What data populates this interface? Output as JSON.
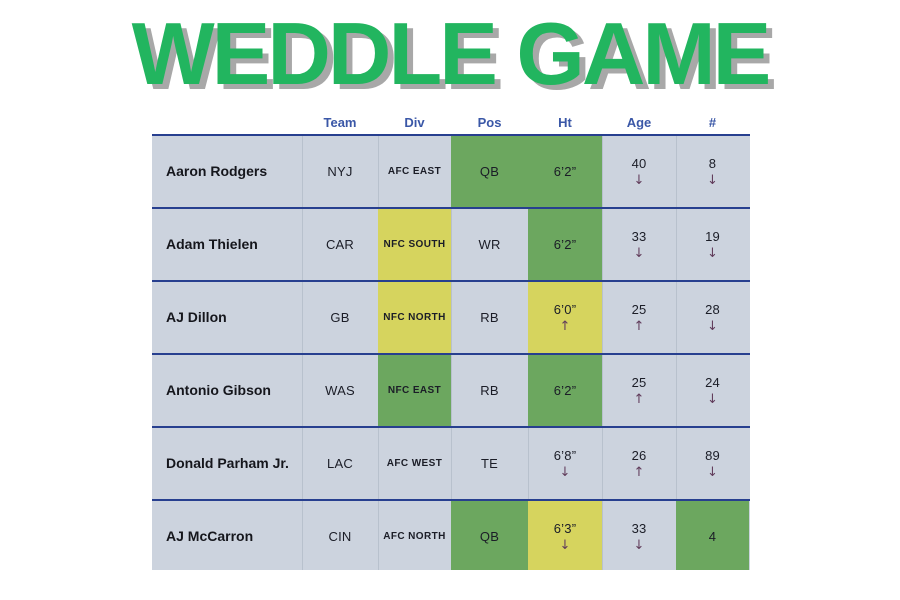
{
  "title": "WEDDLE GAME",
  "arrows": {
    "up": "↑",
    "down": "↓"
  },
  "colors": {
    "title_green": "#22b55f",
    "title_shadow": "#a8a8a8",
    "row_background": "#ccd3de",
    "correct_green": "#6ca75f",
    "close_yellow": "#d6d45e",
    "border_navy": "#273f8f",
    "header_text_blue": "#3a57a7",
    "arrow_purple": "#613c5b"
  },
  "table": {
    "headers": [
      "Team",
      "Div",
      "Pos",
      "Ht",
      "Age",
      "#"
    ],
    "rows": [
      {
        "name": "Aaron Rodgers",
        "cells": [
          {
            "text": "NYJ",
            "bg": "none",
            "arrow": ""
          },
          {
            "text": "AFC EAST",
            "bg": "none",
            "arrow": ""
          },
          {
            "text": "QB",
            "bg": "green",
            "arrow": ""
          },
          {
            "text": "6’2”",
            "bg": "green",
            "arrow": ""
          },
          {
            "text": "40",
            "bg": "none",
            "arrow": "down"
          },
          {
            "text": "8",
            "bg": "none",
            "arrow": "down"
          }
        ]
      },
      {
        "name": "Adam Thielen",
        "cells": [
          {
            "text": "CAR",
            "bg": "none",
            "arrow": ""
          },
          {
            "text": "NFC SOUTH",
            "bg": "yellow",
            "arrow": ""
          },
          {
            "text": "WR",
            "bg": "none",
            "arrow": ""
          },
          {
            "text": "6’2”",
            "bg": "green",
            "arrow": ""
          },
          {
            "text": "33",
            "bg": "none",
            "arrow": "down"
          },
          {
            "text": "19",
            "bg": "none",
            "arrow": "down"
          }
        ]
      },
      {
        "name": "AJ Dillon",
        "cells": [
          {
            "text": "GB",
            "bg": "none",
            "arrow": ""
          },
          {
            "text": "NFC NORTH",
            "bg": "yellow",
            "arrow": ""
          },
          {
            "text": "RB",
            "bg": "none",
            "arrow": ""
          },
          {
            "text": "6’0”",
            "bg": "yellow",
            "arrow": "up"
          },
          {
            "text": "25",
            "bg": "none",
            "arrow": "up"
          },
          {
            "text": "28",
            "bg": "none",
            "arrow": "down"
          }
        ]
      },
      {
        "name": "Antonio Gibson",
        "cells": [
          {
            "text": "WAS",
            "bg": "none",
            "arrow": ""
          },
          {
            "text": "NFC EAST",
            "bg": "green",
            "arrow": ""
          },
          {
            "text": "RB",
            "bg": "none",
            "arrow": ""
          },
          {
            "text": "6’2”",
            "bg": "green",
            "arrow": ""
          },
          {
            "text": "25",
            "bg": "none",
            "arrow": "up"
          },
          {
            "text": "24",
            "bg": "none",
            "arrow": "down"
          }
        ]
      },
      {
        "name": "Donald Parham Jr.",
        "cells": [
          {
            "text": "LAC",
            "bg": "none",
            "arrow": ""
          },
          {
            "text": "AFC WEST",
            "bg": "none",
            "arrow": ""
          },
          {
            "text": "TE",
            "bg": "none",
            "arrow": ""
          },
          {
            "text": "6’8”",
            "bg": "none",
            "arrow": "down"
          },
          {
            "text": "26",
            "bg": "none",
            "arrow": "up"
          },
          {
            "text": "89",
            "bg": "none",
            "arrow": "down"
          }
        ]
      },
      {
        "name": "AJ McCarron",
        "cells": [
          {
            "text": "CIN",
            "bg": "none",
            "arrow": ""
          },
          {
            "text": "AFC NORTH",
            "bg": "none",
            "arrow": ""
          },
          {
            "text": "QB",
            "bg": "green",
            "arrow": ""
          },
          {
            "text": "6’3”",
            "bg": "yellow",
            "arrow": "down"
          },
          {
            "text": "33",
            "bg": "none",
            "arrow": "down"
          },
          {
            "text": "4",
            "bg": "green",
            "arrow": ""
          }
        ]
      }
    ]
  }
}
